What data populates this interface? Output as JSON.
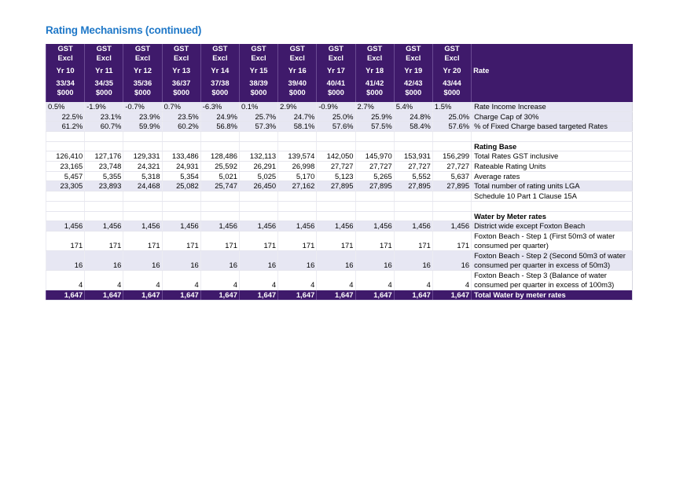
{
  "title": "Rating Mechanisms (continued)",
  "header": {
    "row1": [
      "GST",
      "GST",
      "GST",
      "GST",
      "GST",
      "GST",
      "GST",
      "GST",
      "GST",
      "GST",
      "GST"
    ],
    "row2": [
      "Excl",
      "Excl",
      "Excl",
      "Excl",
      "Excl",
      "Excl",
      "Excl",
      "Excl",
      "Excl",
      "Excl",
      "Excl"
    ],
    "years": [
      "Yr 10",
      "Yr 11",
      "Yr 12",
      "Yr 13",
      "Yr 14",
      "Yr 15",
      "Yr 16",
      "Yr 17",
      "Yr 18",
      "Yr 19",
      "Yr 20"
    ],
    "periods": [
      "33/34",
      "34/35",
      "35/36",
      "36/37",
      "37/38",
      "38/39",
      "39/40",
      "40/41",
      "41/42",
      "42/43",
      "43/44"
    ],
    "units": [
      "$000",
      "$000",
      "$000",
      "$000",
      "$000",
      "$000",
      "$000",
      "$000",
      "$000",
      "$000",
      "$000"
    ],
    "rate_label": "Rate"
  },
  "rows": [
    {
      "label": "Rate Income Increase",
      "values": [
        "0.5%",
        "-1.9%",
        "-0.7%",
        "0.7%",
        "-6.3%",
        "0.1%",
        "2.9%",
        "-0.9%",
        "2.7%",
        "5.4%",
        "1.5%"
      ]
    },
    {
      "label": "Charge Cap of 30%",
      "values": [
        "22.5%",
        "23.1%",
        "23.9%",
        "23.5%",
        "24.9%",
        "25.7%",
        "24.7%",
        "25.0%",
        "25.9%",
        "24.8%",
        "25.0%"
      ]
    },
    {
      "label": "% of Fixed Charge based targeted Rates",
      "values": [
        "61.2%",
        "60.7%",
        "59.9%",
        "60.2%",
        "56.8%",
        "57.3%",
        "58.1%",
        "57.6%",
        "57.5%",
        "58.4%",
        "57.6%"
      ]
    },
    {
      "label": "",
      "values": [
        "",
        "",
        "",
        "",
        "",
        "",
        "",
        "",
        "",
        "",
        ""
      ]
    },
    {
      "label": "Rating Base",
      "values": [
        "",
        "",
        "",
        "",
        "",
        "",
        "",
        "",
        "",
        "",
        ""
      ]
    },
    {
      "label": "Total Rates GST inclusive",
      "values": [
        "126,410",
        "127,176",
        "129,331",
        "133,486",
        "128,486",
        "132,113",
        "139,574",
        "142,050",
        "145,970",
        "153,931",
        "156,299"
      ]
    },
    {
      "label": "Rateable Rating Units",
      "values": [
        "23,165",
        "23,748",
        "24,321",
        "24,931",
        "25,592",
        "26,291",
        "26,998",
        "27,727",
        "27,727",
        "27,727",
        "27,727"
      ]
    },
    {
      "label": "Average rates",
      "values": [
        "5,457",
        "5,355",
        "5,318",
        "5,354",
        "5,021",
        "5,025",
        "5,170",
        "5,123",
        "5,265",
        "5,552",
        "5,637"
      ]
    },
    {
      "label": "Total number of rating units LGA",
      "values": [
        "23,305",
        "23,893",
        "24,468",
        "25,082",
        "25,747",
        "26,450",
        "27,162",
        "27,895",
        "27,895",
        "27,895",
        "27,895"
      ]
    },
    {
      "label": "Schedule 10 Part 1 Clause 15A",
      "values": [
        "",
        "",
        "",
        "",
        "",
        "",
        "",
        "",
        "",
        "",
        ""
      ]
    },
    {
      "label": "",
      "values": [
        "",
        "",
        "",
        "",
        "",
        "",
        "",
        "",
        "",
        "",
        ""
      ]
    },
    {
      "label": "Water by Meter rates",
      "values": [
        "",
        "",
        "",
        "",
        "",
        "",
        "",
        "",
        "",
        "",
        ""
      ]
    },
    {
      "label": "District wide except Foxton Beach",
      "values": [
        "1,456",
        "1,456",
        "1,456",
        "1,456",
        "1,456",
        "1,456",
        "1,456",
        "1,456",
        "1,456",
        "1,456",
        "1,456"
      ]
    },
    {
      "label": "Foxton Beach - Step 1 (First 50m3 of water consumed per quarter)",
      "values": [
        "171",
        "171",
        "171",
        "171",
        "171",
        "171",
        "171",
        "171",
        "171",
        "171",
        "171"
      ]
    },
    {
      "label": "Foxton Beach - Step 2 (Second 50m3 of water consumed per quarter in excess of 50m3)",
      "values": [
        "16",
        "16",
        "16",
        "16",
        "16",
        "16",
        "16",
        "16",
        "16",
        "16",
        "16"
      ]
    },
    {
      "label": "Foxton Beach - Step 3 (Balance of water consumed per quarter in excess of 100m3)",
      "values": [
        "4",
        "4",
        "4",
        "4",
        "4",
        "4",
        "4",
        "4",
        "4",
        "4",
        "4"
      ]
    },
    {
      "label": "Total Water by meter rates",
      "values": [
        "1,647",
        "1,647",
        "1,647",
        "1,647",
        "1,647",
        "1,647",
        "1,647",
        "1,647",
        "1,647",
        "1,647",
        "1,647"
      ]
    }
  ]
}
